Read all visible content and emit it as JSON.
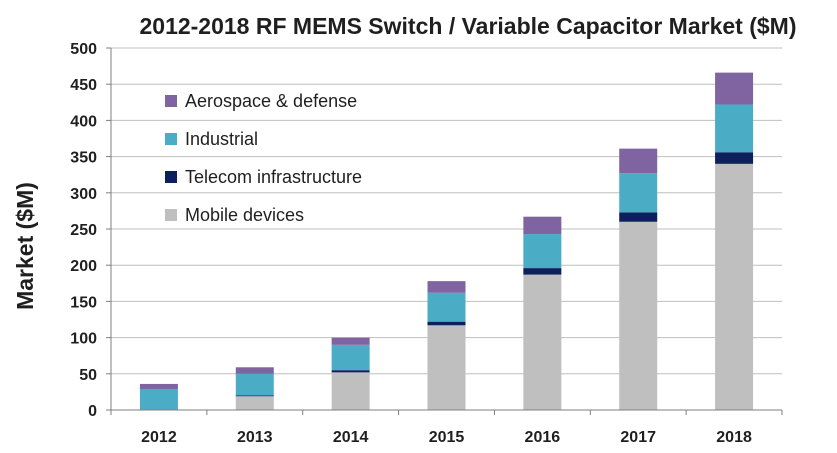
{
  "chart_data": {
    "type": "bar",
    "stacked": true,
    "title": "2012-2018 RF MEMS Switch / Variable Capacitor  Market ($M)",
    "xlabel": "",
    "ylabel": "Market ($M)",
    "ylim": [
      0,
      500
    ],
    "yticks": [
      0,
      50,
      100,
      150,
      200,
      250,
      300,
      350,
      400,
      450,
      500
    ],
    "grid": true,
    "legend_position": "top-left",
    "categories": [
      "2012",
      "2013",
      "2014",
      "2015",
      "2016",
      "2017",
      "2018"
    ],
    "series": [
      {
        "name": "Mobile devices",
        "color": "#bfbfbf",
        "values": [
          0,
          19,
          52,
          117,
          187,
          260,
          340
        ]
      },
      {
        "name": "Telecom infrastructure",
        "color": "#0d1f5c",
        "values": [
          1,
          1,
          3,
          5,
          9,
          13,
          16
        ]
      },
      {
        "name": "Industrial",
        "color": "#4bacc6",
        "values": [
          28,
          30,
          35,
          40,
          47,
          54,
          66
        ]
      },
      {
        "name": "Aerospace & defense",
        "color": "#8064a2",
        "values": [
          7,
          9,
          10,
          16,
          24,
          34,
          44
        ]
      }
    ],
    "legend_order": [
      "Aerospace & defense",
      "Industrial",
      "Telecom infrastructure",
      "Mobile devices"
    ]
  }
}
